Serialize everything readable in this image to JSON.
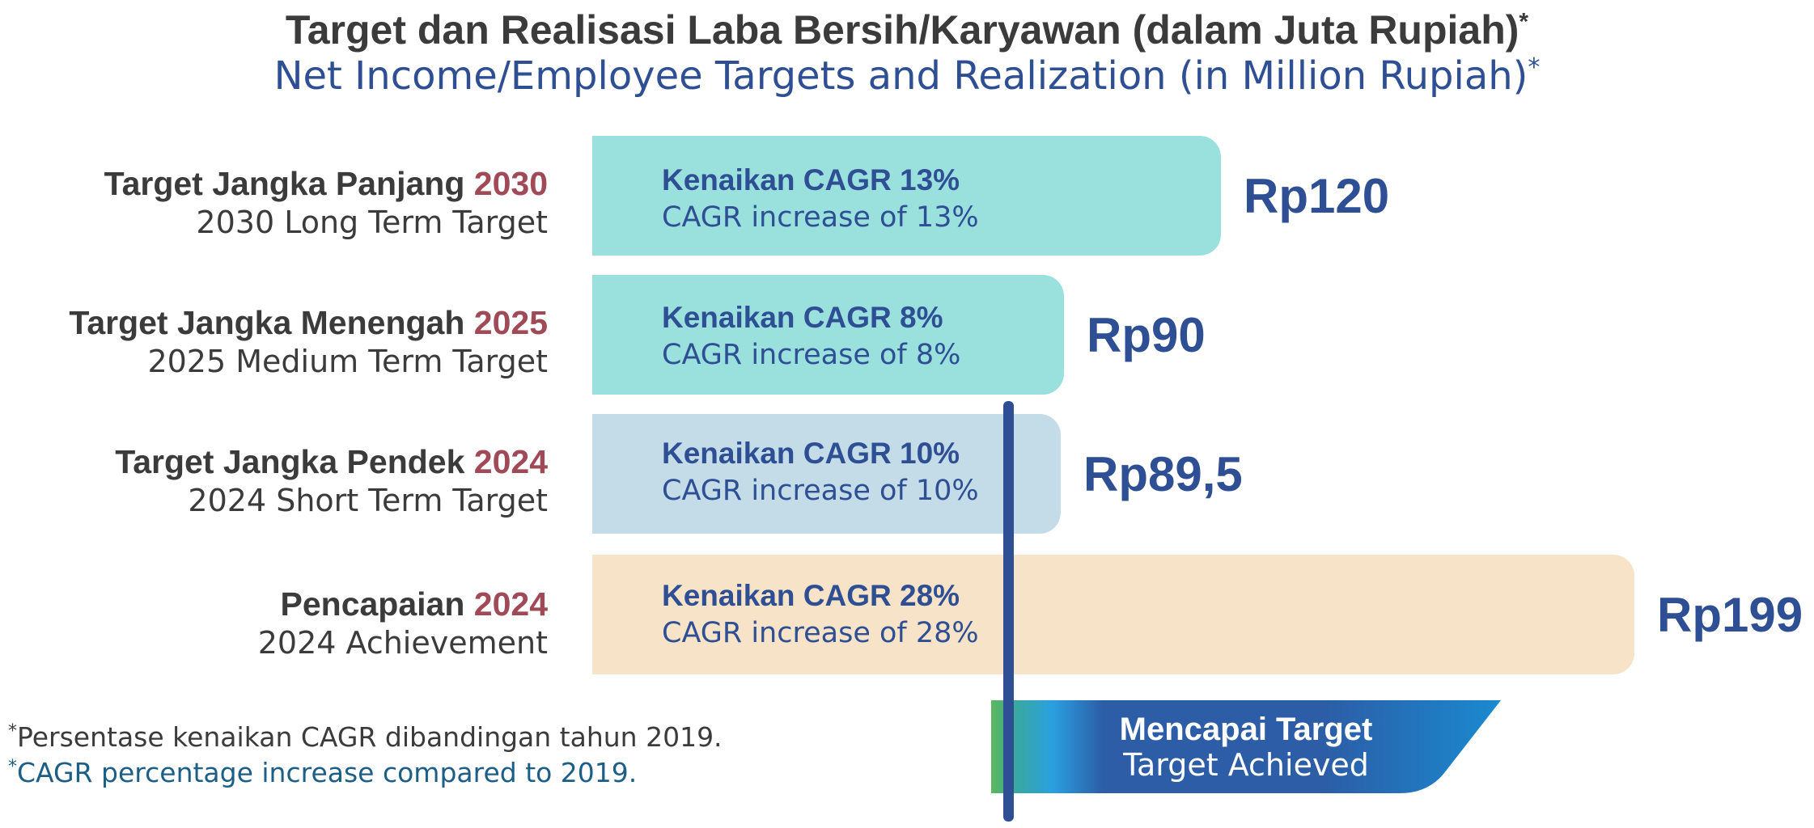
{
  "title": {
    "id": "Target dan Realisasi Laba Bersih/Karyawan (dalam Juta Rupiah)",
    "en": "Net Income/Employee Targets and Realization (in Million Rupiah)",
    "asterisk": "*"
  },
  "colors": {
    "long_term": "#9ae0dd",
    "medium_term": "#9ae0dd",
    "short_term": "#c4dce7",
    "achievement": "#f7e3c8",
    "text_blue": "#2e4f94",
    "year_red": "#a04a58",
    "dark_text": "#3b3b3b",
    "footnote_blue": "#1b5e86"
  },
  "chart_data": {
    "type": "bar",
    "orientation": "horizontal",
    "unit": "Rp (Juta)",
    "xlim": [
      0,
      199
    ],
    "grid": false,
    "categories": [
      "Target Jangka Panjang 2030",
      "Target Jangka Menengah 2025",
      "Target Jangka Pendek 2024",
      "Pencapaian 2024"
    ],
    "values": [
      120,
      90,
      89.5,
      199
    ],
    "reference_value": 89.5,
    "rows": [
      {
        "label_main": "Target Jangka Panjang ",
        "label_year": "2030",
        "label_en": "2030 Long Term Target",
        "cagr_id": "Kenaikan CAGR 13%",
        "cagr_en": "CAGR increase of 13%",
        "value": 120,
        "value_label": "Rp120",
        "color": "#9ae0dd"
      },
      {
        "label_main": "Target Jangka Menengah ",
        "label_year": "2025",
        "label_en": "2025 Medium Term Target",
        "cagr_id": "Kenaikan CAGR 8%",
        "cagr_en": "CAGR increase of 8%",
        "value": 90,
        "value_label": "Rp90",
        "color": "#9ae0dd"
      },
      {
        "label_main": "Target Jangka Pendek ",
        "label_year": "2024",
        "label_en": "2024 Short Term Target",
        "cagr_id": "Kenaikan CAGR 10%",
        "cagr_en": "CAGR increase of 10%",
        "value": 89.5,
        "value_label": "Rp89,5",
        "color": "#c4dce7"
      },
      {
        "label_main": "Pencapaian ",
        "label_year": "2024",
        "label_en": "2024 Achievement",
        "cagr_id": "Kenaikan CAGR 28%",
        "cagr_en": "CAGR increase of 28%",
        "value": 199,
        "value_label": "Rp199",
        "color": "#f7e3c8"
      }
    ]
  },
  "badge": {
    "line_id": "Mencapai Target",
    "line_en": "Target Achieved"
  },
  "footnotes": {
    "asterisk": "*",
    "id": "Persentase kenaikan CAGR dibandingan tahun 2019.",
    "en": "CAGR percentage increase compared to 2019."
  }
}
